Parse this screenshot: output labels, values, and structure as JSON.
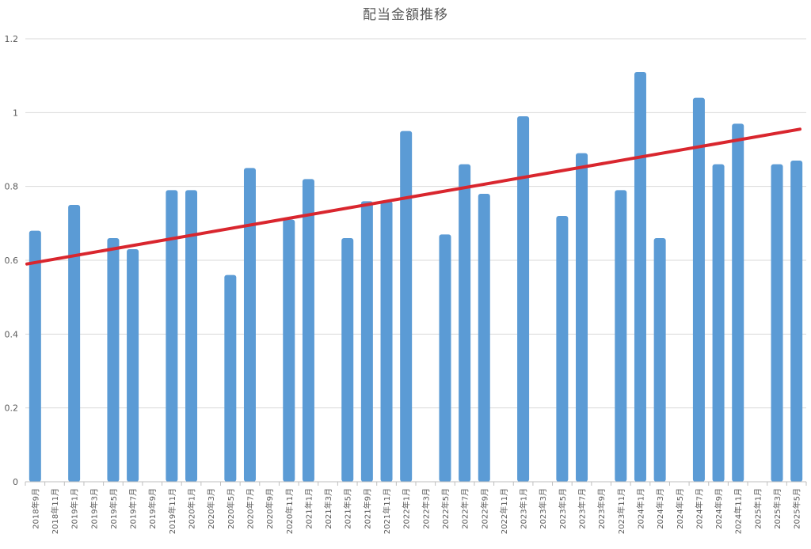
{
  "chart_data": {
    "type": "bar",
    "title": "配当金額推移",
    "xlabel": "",
    "ylabel": "",
    "ylim": [
      0,
      1.2
    ],
    "yticks": [
      "0",
      "0.2",
      "0.4",
      "0.6",
      "0.8",
      "1",
      "1.2"
    ],
    "grid": true,
    "legend": "none",
    "categories": [
      "2018年9月",
      "2018年11月",
      "2019年1月",
      "2019年3月",
      "2019年5月",
      "2019年7月",
      "2019年9月",
      "2019年11月",
      "2020年1月",
      "2020年3月",
      "2020年5月",
      "2020年7月",
      "2020年9月",
      "2020年11月",
      "2021年1月",
      "2021年3月",
      "2021年5月",
      "2021年9月",
      "2021年11月",
      "2022年1月",
      "2022年3月",
      "2022年5月",
      "2022年7月",
      "2022年9月",
      "2022年11月",
      "2023年1月",
      "2023年3月",
      "2023年5月",
      "2023年7月",
      "2023年9月",
      "2023年11月",
      "2024年1月",
      "2024年3月",
      "2024年5月",
      "2024年7月",
      "2024年9月",
      "2024年11月",
      "2025年1月",
      "2025年3月",
      "2025年5月"
    ],
    "bars": [
      {
        "category": "2018年9月",
        "value": 0.68
      },
      {
        "category": "2019年1月",
        "value": 0.75
      },
      {
        "category": "2019年5月",
        "value": 0.66
      },
      {
        "category": "2019年7月",
        "value": 0.63
      },
      {
        "category": "2019年11月",
        "value": 0.79
      },
      {
        "category": "2020年1月",
        "value": 0.79
      },
      {
        "category": "2020年5月",
        "value": 0.56
      },
      {
        "category": "2020年7月",
        "value": 0.85
      },
      {
        "category": "2020年11月",
        "value": 0.71
      },
      {
        "category": "2021年1月",
        "value": 0.82
      },
      {
        "category": "2021年5月",
        "value": 0.66
      },
      {
        "category": "2021年9月",
        "value": 0.76
      },
      {
        "category": "2021年11月",
        "value": 0.76
      },
      {
        "category": "2022年1月",
        "value": 0.95
      },
      {
        "category": "2022年5月",
        "value": 0.67
      },
      {
        "category": "2022年7月",
        "value": 0.86
      },
      {
        "category": "2022年9月",
        "value": 0.78
      },
      {
        "category": "2023年1月",
        "value": 0.99
      },
      {
        "category": "2023年5月",
        "value": 0.72
      },
      {
        "category": "2023年7月",
        "value": 0.89
      },
      {
        "category": "2023年11月",
        "value": 0.79
      },
      {
        "category": "2024年1月",
        "value": 1.11
      },
      {
        "category": "2024年3月",
        "value": 0.66
      },
      {
        "category": "2024年7月",
        "value": 1.04
      },
      {
        "category": "2024年9月",
        "value": 0.86
      },
      {
        "category": "2024年11月",
        "value": 0.97
      },
      {
        "category": "2025年3月",
        "value": 0.86
      },
      {
        "category": "2025年5月",
        "value": 0.87
      }
    ],
    "trendline": {
      "type": "linear",
      "start_value": 0.59,
      "end_value": 0.955
    },
    "colors": {
      "bar": "#5b9bd5",
      "trend": "#d9262e",
      "grid": "#d9d9d9",
      "text": "#595959"
    }
  }
}
